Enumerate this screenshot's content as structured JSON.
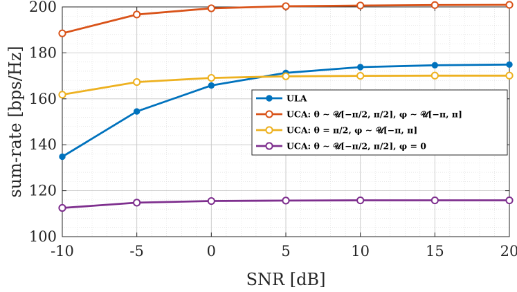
{
  "chart_data": {
    "type": "line",
    "xlabel": "SNR [dB]",
    "ylabel": "sum-rate [bps/Hz]",
    "xlim": [
      -10,
      20
    ],
    "ylim": [
      100,
      200
    ],
    "xticks": [
      -10,
      -5,
      0,
      5,
      10,
      15,
      20
    ],
    "yticks": [
      100,
      120,
      140,
      160,
      180,
      200
    ],
    "grid": true,
    "legend_position": "center-right",
    "x": [
      -10,
      -5,
      0,
      5,
      10,
      15,
      20
    ],
    "series": [
      {
        "name": "ULA",
        "values": [
          134.8,
          154.5,
          165.8,
          171.3,
          173.8,
          174.6,
          174.9
        ],
        "color": "#0072BD",
        "marker": "filled-circle"
      },
      {
        "name": "UCA: θ ∼ 𝒰[−π/2, π/2],   φ ∼ 𝒰[−π, π]",
        "values": [
          188.5,
          196.7,
          199.4,
          200.3,
          200.6,
          200.8,
          200.9
        ],
        "color": "#D95319",
        "marker": "open-circle"
      },
      {
        "name": "UCA: θ = π/2,   φ ∼ 𝒰[−π, π]",
        "values": [
          161.8,
          167.3,
          169.1,
          169.8,
          170.0,
          170.1,
          170.1
        ],
        "color": "#EDB120",
        "marker": "open-circle"
      },
      {
        "name": "UCA: θ ∼ 𝒰[−π/2, π/2],   φ = 0",
        "values": [
          112.5,
          114.8,
          115.5,
          115.7,
          115.8,
          115.8,
          115.8
        ],
        "color": "#7E2F8E",
        "marker": "open-circle"
      }
    ]
  }
}
